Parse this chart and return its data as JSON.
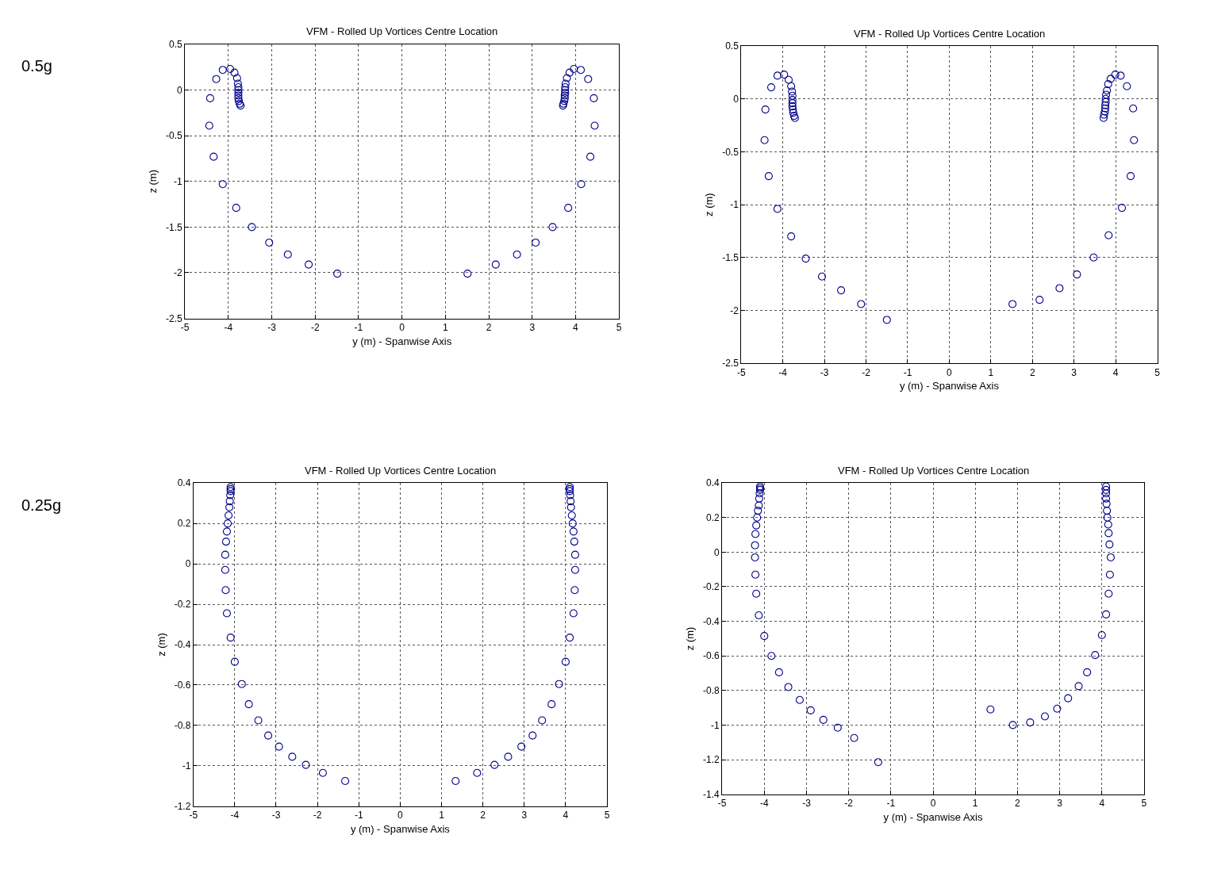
{
  "chart_data": [
    {
      "type": "scatter",
      "title": "VFM - Rolled Up Vortices Centre Location",
      "xlabel": "y (m) - Spanwise Axis",
      "ylabel": "z (m)",
      "annotations": [
        "0.5g"
      ],
      "xlim": [
        -5,
        5
      ],
      "ylim": [
        -2.5,
        0.5
      ],
      "xticks": [
        -5,
        -4,
        -3,
        -2,
        -1,
        0,
        1,
        2,
        3,
        4,
        5
      ],
      "yticks": [
        -2.5,
        -2,
        -1.5,
        -1,
        -0.5,
        0,
        0.5
      ],
      "grid": true,
      "marker": "circle",
      "series": [
        {
          "color": "#00008b",
          "x": [
            -3.72,
            -3.74,
            -3.76,
            -3.77,
            -3.77,
            -3.77,
            -3.77,
            -3.77,
            -3.78,
            -3.8,
            -3.86,
            -3.96,
            -4.13,
            -4.28,
            -4.42,
            -4.44,
            -4.34,
            -4.13,
            -3.82,
            -3.46,
            -3.06,
            -2.63,
            -2.15,
            -1.49,
            1.51,
            2.16,
            2.65,
            3.08,
            3.47,
            3.83,
            4.13,
            4.34,
            4.44,
            4.42,
            4.29,
            4.12,
            3.96,
            3.86,
            3.8,
            3.77,
            3.76,
            3.76,
            3.76,
            3.75,
            3.75,
            3.74,
            3.72,
            3.71
          ],
          "values": [
            -0.17,
            -0.15,
            -0.12,
            -0.09,
            -0.06,
            -0.03,
            0.0,
            0.03,
            0.07,
            0.13,
            0.19,
            0.23,
            0.22,
            0.12,
            -0.09,
            -0.39,
            -0.73,
            -1.03,
            -1.29,
            -1.5,
            -1.67,
            -1.8,
            -1.91,
            -2.01,
            -2.01,
            -1.91,
            -1.8,
            -1.67,
            -1.5,
            -1.29,
            -1.03,
            -0.73,
            -0.39,
            -0.09,
            0.12,
            0.22,
            0.23,
            0.19,
            0.13,
            0.07,
            0.03,
            0.0,
            -0.03,
            -0.06,
            -0.09,
            -0.12,
            -0.15,
            -0.17
          ]
        }
      ]
    },
    {
      "type": "scatter",
      "title": "VFM - Rolled Up Vortices Centre Location",
      "xlabel": "y (m) - Spanwise Axis",
      "ylabel": "z (m)",
      "xlim": [
        -5,
        5
      ],
      "ylim": [
        -2.5,
        0.5
      ],
      "xticks": [
        -5,
        -4,
        -3,
        -2,
        -1,
        0,
        1,
        2,
        3,
        4,
        5
      ],
      "yticks": [
        -2.5,
        -2,
        -1.5,
        -1,
        -0.5,
        0,
        0.5
      ],
      "grid": true,
      "marker": "circle",
      "series": [
        {
          "color": "#00008b",
          "x": [
            -3.71,
            -3.73,
            -3.75,
            -3.76,
            -3.77,
            -3.77,
            -3.77,
            -3.77,
            -3.78,
            -3.8,
            -3.86,
            -3.97,
            -4.13,
            -4.28,
            -4.42,
            -4.44,
            -4.34,
            -4.13,
            -3.8,
            -3.45,
            -3.06,
            -2.6,
            -2.12,
            -1.5,
            1.52,
            2.17,
            2.65,
            3.07,
            3.47,
            3.83,
            4.15,
            4.36,
            4.44,
            4.42,
            4.27,
            4.12,
            3.99,
            3.88,
            3.82,
            3.79,
            3.77,
            3.76,
            3.76,
            3.75,
            3.75,
            3.74,
            3.72,
            3.71
          ],
          "values": [
            -0.18,
            -0.16,
            -0.13,
            -0.1,
            -0.07,
            -0.04,
            -0.01,
            0.03,
            0.07,
            0.12,
            0.18,
            0.23,
            0.22,
            0.11,
            -0.1,
            -0.39,
            -0.73,
            -1.04,
            -1.3,
            -1.51,
            -1.68,
            -1.81,
            -1.94,
            -2.09,
            -1.94,
            -1.9,
            -1.79,
            -1.66,
            -1.5,
            -1.29,
            -1.03,
            -0.73,
            -0.39,
            -0.09,
            0.12,
            0.22,
            0.23,
            0.19,
            0.14,
            0.08,
            0.04,
            0.0,
            -0.03,
            -0.06,
            -0.09,
            -0.12,
            -0.15,
            -0.18
          ]
        }
      ]
    },
    {
      "type": "scatter",
      "title": "VFM - Rolled Up Vortices Centre Location",
      "xlabel": "y (m) - Spanwise Axis",
      "ylabel": "z (m)",
      "annotations": [
        "0.25g"
      ],
      "xlim": [
        -5,
        5
      ],
      "ylim": [
        -1.2,
        0.4
      ],
      "xticks": [
        -5,
        -4,
        -3,
        -2,
        -1,
        0,
        1,
        2,
        3,
        4,
        5
      ],
      "yticks": [
        -1.2,
        -1,
        -0.8,
        -0.6,
        -0.4,
        -0.2,
        0,
        0.2,
        0.4
      ],
      "grid": true,
      "marker": "circle",
      "series": [
        {
          "color": "#00008b",
          "x": [
            -4.1,
            -4.1,
            -4.1,
            -4.11,
            -4.12,
            -4.13,
            -4.15,
            -4.17,
            -4.19,
            -4.21,
            -4.23,
            -4.23,
            -4.22,
            -4.19,
            -4.1,
            -4.0,
            -3.83,
            -3.66,
            -3.43,
            -3.19,
            -2.93,
            -2.61,
            -2.28,
            -1.87,
            -1.33,
            1.34,
            1.86,
            2.28,
            2.61,
            2.93,
            3.2,
            3.43,
            3.66,
            3.84,
            4.0,
            4.1,
            4.19,
            4.22,
            4.23,
            4.23,
            4.21,
            4.19,
            4.17,
            4.15,
            4.13,
            4.12,
            4.11,
            4.1,
            4.1,
            4.1
          ],
          "values": [
            0.38,
            0.37,
            0.36,
            0.34,
            0.31,
            0.28,
            0.24,
            0.2,
            0.16,
            0.11,
            0.045,
            -0.03,
            -0.13,
            -0.245,
            -0.365,
            -0.485,
            -0.595,
            -0.695,
            -0.775,
            -0.85,
            -0.905,
            -0.955,
            -0.995,
            -1.035,
            -1.075,
            -1.075,
            -1.035,
            -0.995,
            -0.955,
            -0.905,
            -0.85,
            -0.775,
            -0.695,
            -0.595,
            -0.485,
            -0.365,
            -0.245,
            -0.13,
            -0.03,
            0.045,
            0.11,
            0.16,
            0.2,
            0.24,
            0.28,
            0.31,
            0.34,
            0.36,
            0.37,
            0.38
          ]
        }
      ]
    },
    {
      "type": "scatter",
      "title": "VFM - Rolled Up Vortices Centre Location",
      "xlabel": "y (m) - Spanwise Axis",
      "ylabel": "z (m)",
      "xlim": [
        -5,
        5
      ],
      "ylim": [
        -1.4,
        0.4
      ],
      "xticks": [
        -5,
        -4,
        -3,
        -2,
        -1,
        0,
        1,
        2,
        3,
        4,
        5
      ],
      "yticks": [
        -1.4,
        -1.2,
        -1,
        -0.8,
        -0.6,
        -0.4,
        -0.2,
        0,
        0.2,
        0.4
      ],
      "grid": true,
      "marker": "circle",
      "series": [
        {
          "color": "#00008b",
          "x": [
            -4.1,
            -4.1,
            -4.1,
            -4.11,
            -4.12,
            -4.13,
            -4.15,
            -4.17,
            -4.19,
            -4.21,
            -4.22,
            -4.22,
            -4.21,
            -4.19,
            -4.13,
            -4.0,
            -3.83,
            -3.65,
            -3.43,
            -3.16,
            -2.9,
            -2.6,
            -2.26,
            -1.87,
            -1.3,
            1.36,
            1.89,
            2.3,
            2.65,
            2.94,
            3.2,
            3.45,
            3.65,
            3.84,
            4.0,
            4.1,
            4.16,
            4.19,
            4.21,
            4.18,
            4.16,
            4.15,
            4.13,
            4.12,
            4.11,
            4.1,
            4.1,
            4.1,
            4.1
          ],
          "values": [
            0.38,
            0.37,
            0.36,
            0.34,
            0.31,
            0.27,
            0.24,
            0.2,
            0.155,
            0.105,
            0.04,
            -0.03,
            -0.13,
            -0.24,
            -0.365,
            -0.485,
            -0.6,
            -0.695,
            -0.78,
            -0.855,
            -0.915,
            -0.97,
            -1.015,
            -1.075,
            -1.215,
            -0.91,
            -1.0,
            -0.985,
            -0.95,
            -0.905,
            -0.845,
            -0.775,
            -0.695,
            -0.595,
            -0.48,
            -0.36,
            -0.24,
            -0.13,
            -0.03,
            0.045,
            0.11,
            0.16,
            0.2,
            0.24,
            0.28,
            0.31,
            0.34,
            0.36,
            0.38
          ]
        }
      ]
    }
  ]
}
